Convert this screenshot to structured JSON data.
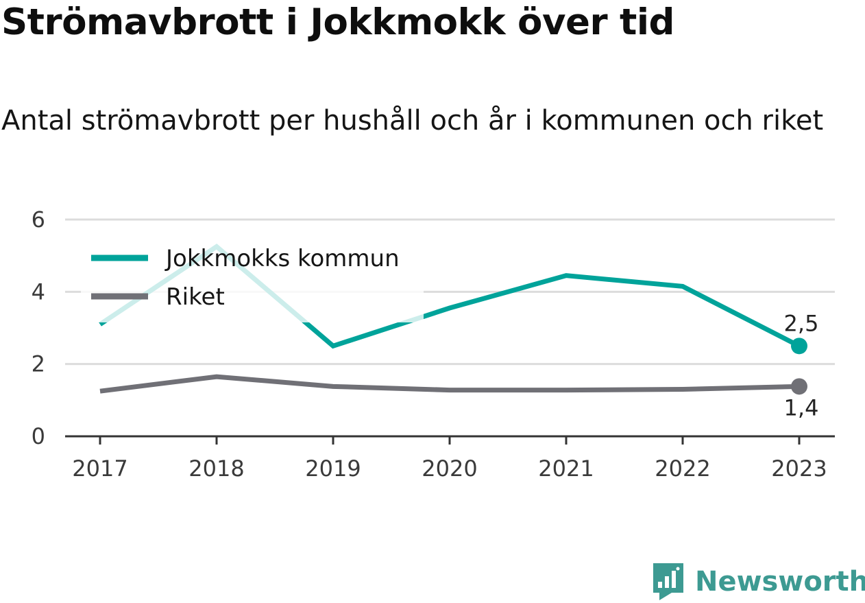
{
  "title": "Strömavbrott i Jokkmokk över tid",
  "subtitle": "Antal strömavbrott per hushåll och år i kommunen och riket",
  "brand": {
    "name": "Newsworthy",
    "icon": "newsworthy-logo-icon",
    "color": "#3d9a92"
  },
  "chart_data": {
    "type": "line",
    "title": "Strömavbrott i Jokkmokk över tid",
    "subtitle": "Antal strömavbrott per hushåll och år i kommunen och riket",
    "categories": [
      "2017",
      "2018",
      "2019",
      "2020",
      "2021",
      "2022",
      "2023"
    ],
    "yticks": [
      "0",
      "2",
      "4",
      "6"
    ],
    "ylim": [
      0,
      6
    ],
    "grid": true,
    "legend": "top-left",
    "series": [
      {
        "name": "Jokkmokks kommun",
        "color": "#00a39a",
        "values": [
          3.1,
          5.25,
          2.5,
          3.55,
          4.45,
          4.15,
          2.5
        ],
        "end_label": "2,5"
      },
      {
        "name": "Riket",
        "color": "#707076",
        "values": [
          1.25,
          1.65,
          1.38,
          1.28,
          1.28,
          1.3,
          1.38
        ],
        "end_label": "1,4"
      }
    ]
  }
}
